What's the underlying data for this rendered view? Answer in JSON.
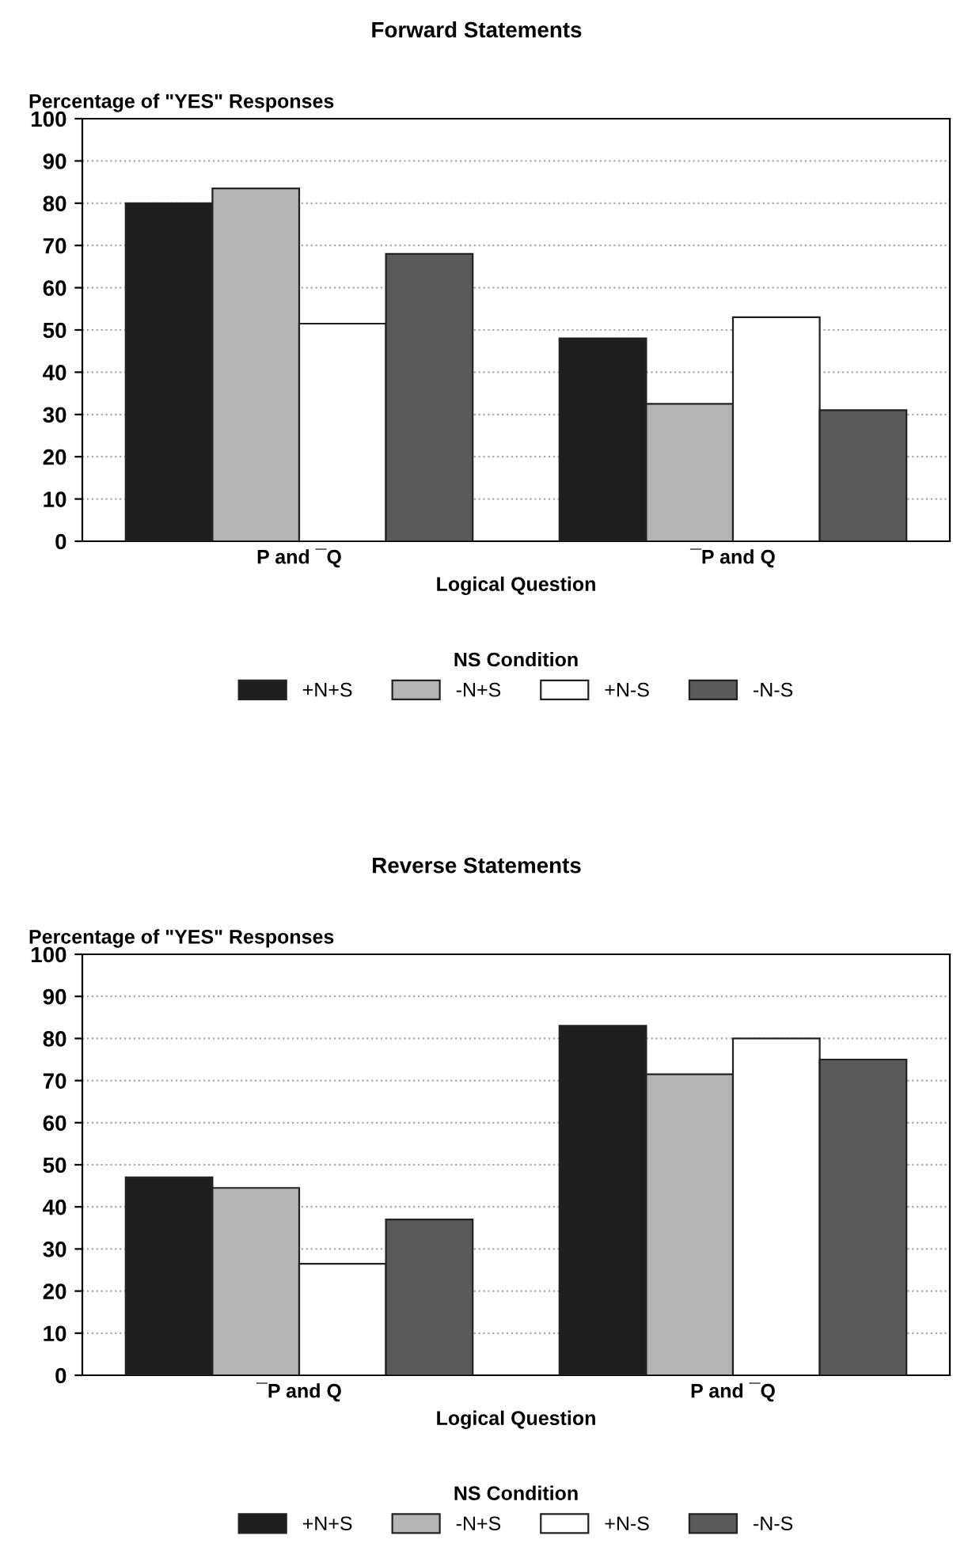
{
  "chart_data": [
    {
      "type": "bar",
      "title": "Forward Statements",
      "ylabel": "Percentage of \"YES\" Responses",
      "xlabel": "Logical Question",
      "legend_title": "NS Condition",
      "categories": [
        "P and ¯Q",
        "¯P and Q"
      ],
      "series": [
        {
          "name": "+N+S",
          "color": "#1e1e1e",
          "values": [
            80,
            48
          ]
        },
        {
          "name": "-N+S",
          "color": "#b4b4b4",
          "values": [
            83.5,
            32.5
          ]
        },
        {
          "name": "+N-S",
          "color": "#ffffff",
          "values": [
            51.5,
            53
          ]
        },
        {
          "name": "-N-S",
          "color": "#5a5a5a",
          "values": [
            68,
            31
          ]
        }
      ],
      "ylim": [
        0,
        100
      ],
      "yticks": [
        0,
        10,
        20,
        30,
        40,
        50,
        60,
        70,
        80,
        90,
        100
      ],
      "grid": "y",
      "legend": "bottom"
    },
    {
      "type": "bar",
      "title": "Reverse Statements",
      "ylabel": "Percentage of \"YES\" Responses",
      "xlabel": "Logical Question",
      "legend_title": "NS Condition",
      "categories": [
        "¯P and Q",
        "P and ¯Q"
      ],
      "series": [
        {
          "name": "+N+S",
          "color": "#1e1e1e",
          "values": [
            47,
            83
          ]
        },
        {
          "name": "-N+S",
          "color": "#b4b4b4",
          "values": [
            44.5,
            71.5
          ]
        },
        {
          "name": "+N-S",
          "color": "#ffffff",
          "values": [
            26.5,
            80
          ]
        },
        {
          "name": "-N-S",
          "color": "#5a5a5a",
          "values": [
            37,
            75
          ]
        }
      ],
      "ylim": [
        0,
        100
      ],
      "yticks": [
        0,
        10,
        20,
        30,
        40,
        50,
        60,
        70,
        80,
        90,
        100
      ],
      "grid": "y",
      "legend": "bottom"
    }
  ]
}
